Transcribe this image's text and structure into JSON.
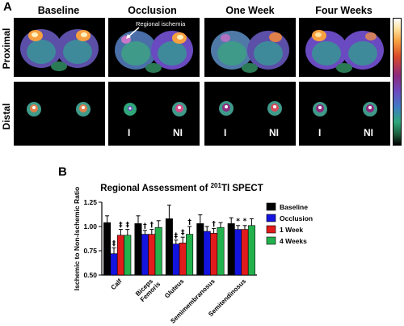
{
  "panels": {
    "a_label": "A",
    "b_label": "B",
    "columns": [
      "Baseline",
      "Occlusion",
      "One Week",
      "Four Weeks"
    ],
    "rows": [
      "Proximal",
      "Distal"
    ],
    "annotation": "Regional ischemia",
    "side_labels": {
      "ischemic": "I",
      "non_ischemic": "NI"
    },
    "colormap": [
      "#ffffff",
      "#f7a040",
      "#d84a2a",
      "#8d2a7e",
      "#6a4ac0",
      "#3f7cc4",
      "#2fa77a",
      "#000000"
    ]
  },
  "chart_data": {
    "type": "bar",
    "title": "Regional Assessment of 201Tl SPECT",
    "title_parts": {
      "pre": "Regional Assessment of ",
      "sup": "201",
      "post": "Tl SPECT"
    },
    "xlabel": "",
    "ylabel": "Ischemic to Non-Ischemic Ratio",
    "ylim": [
      0.5,
      1.25
    ],
    "yticks": [
      "0.50",
      "0.75",
      "1.00",
      "1.25"
    ],
    "ytick_values": [
      0.5,
      0.75,
      1.0,
      1.25
    ],
    "categories": [
      "Calf",
      "Biceps Femoris",
      "Gluteus",
      "Semimembranosus",
      "Semitendinosus"
    ],
    "category_lines": [
      [
        "Calf"
      ],
      [
        "Biceps",
        "Femoris"
      ],
      [
        "Gluteus"
      ],
      [
        "Semimembranosus"
      ],
      [
        "Semitendinosus"
      ]
    ],
    "legend_position": "right",
    "series": [
      {
        "name": "Baseline",
        "color": "#000000",
        "values": [
          1.04,
          1.03,
          1.08,
          1.03,
          1.03
        ],
        "errors": [
          0.07,
          0.08,
          0.14,
          0.09,
          0.06
        ]
      },
      {
        "name": "Occlusion",
        "color": "#1414e0",
        "values": [
          0.72,
          0.92,
          0.82,
          0.95,
          0.97
        ],
        "errors": [
          0.06,
          0.04,
          0.04,
          0.05,
          0.04
        ]
      },
      {
        "name": "1 Week",
        "color": "#e11b1b",
        "values": [
          0.91,
          0.92,
          0.83,
          0.93,
          0.97
        ],
        "errors": [
          0.06,
          0.05,
          0.06,
          0.05,
          0.04
        ]
      },
      {
        "name": "4 Weeks",
        "color": "#22b14c",
        "values": [
          0.91,
          0.99,
          0.92,
          0.99,
          1.01
        ],
        "errors": [
          0.06,
          0.07,
          0.08,
          0.05,
          0.07
        ]
      }
    ],
    "annotations": [
      {
        "category": 0,
        "series": 1,
        "text": "‡"
      },
      {
        "category": 0,
        "series": 2,
        "text": "‡"
      },
      {
        "category": 0,
        "series": 3,
        "text": "‡"
      },
      {
        "category": 1,
        "series": 1,
        "text": "†"
      },
      {
        "category": 1,
        "series": 2,
        "text": "†"
      },
      {
        "category": 2,
        "series": 1,
        "text": "‡"
      },
      {
        "category": 2,
        "series": 2,
        "text": "‡"
      },
      {
        "category": 2,
        "series": 3,
        "text": "†"
      },
      {
        "category": 3,
        "series": 2,
        "text": "†"
      },
      {
        "category": 4,
        "series": 1,
        "text": "*"
      },
      {
        "category": 4,
        "series": 2,
        "text": "*"
      }
    ]
  }
}
